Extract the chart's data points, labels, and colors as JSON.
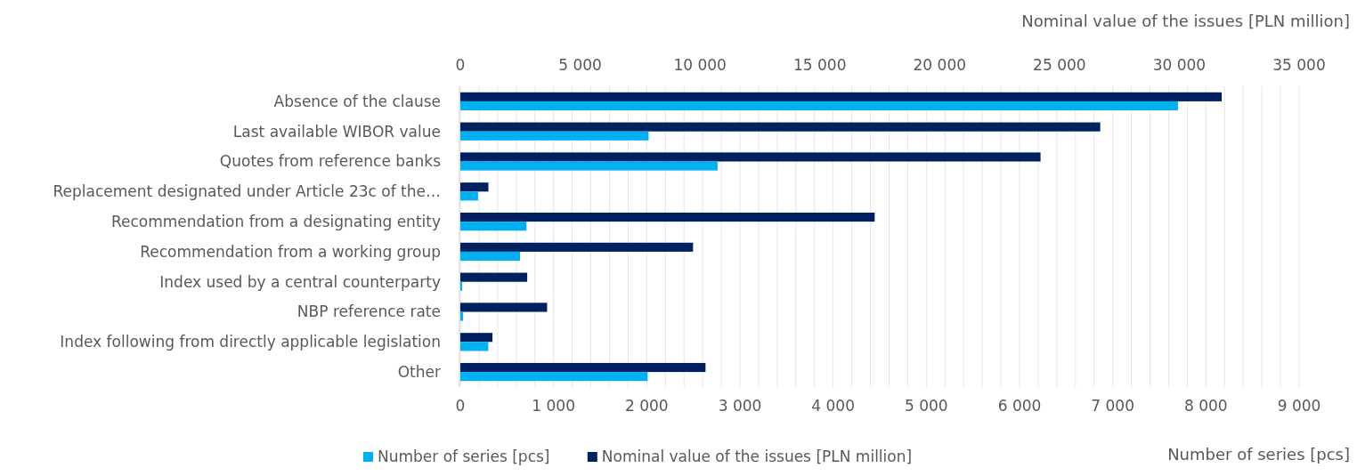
{
  "chart_data": {
    "type": "bar",
    "orientation": "horizontal",
    "categories": [
      "Absence of the clause",
      "Last available WIBOR value",
      "Quotes from reference banks",
      "Replacement designated under Article 23c of the…",
      "Recommendation from a designating entity",
      "Recommendation from a working group",
      "Index used by a central counterparty",
      "NBP reference rate",
      "Index following from directly applicable legislation",
      "Other"
    ],
    "series": [
      {
        "name": "Number of series [pcs]",
        "color": "#00b0f0",
        "values": [
          7700,
          2020,
          2760,
          190,
          710,
          640,
          20,
          30,
          300,
          2010
        ]
      },
      {
        "name": "Nominal value of the issues [PLN million]",
        "color": "#002060",
        "axis": "x2",
        "values": [
          31770,
          26700,
          24210,
          1170,
          17290,
          9710,
          2790,
          3620,
          1340,
          10230
        ]
      }
    ],
    "xlabel": "Number of series [pcs]",
    "x2label": "Nominal value of the issues [PLN million]",
    "xlim": [
      0,
      9000
    ],
    "xticks": [
      0,
      {
        "value": 200,
        "label": null
      },
      {
        "value": 400,
        "label": null
      },
      {
        "value": 600,
        "label": null
      },
      {
        "value": 800,
        "label": null
      },
      {
        "value": 1000,
        "label": "1 000"
      },
      {
        "value": 1200,
        "label": null
      },
      {
        "value": 1400,
        "label": null
      },
      {
        "value": 1600,
        "label": null
      },
      {
        "value": 1800,
        "label": null
      },
      {
        "value": 2000,
        "label": "2 000"
      },
      {
        "value": 2200,
        "label": null
      },
      {
        "value": 2400,
        "label": null
      },
      {
        "value": 2600,
        "label": null
      },
      {
        "value": 2800,
        "label": null
      },
      {
        "value": 3000,
        "label": "3 000"
      },
      {
        "value": 3200,
        "label": null
      },
      {
        "value": 3400,
        "label": null
      },
      {
        "value": 3600,
        "label": null
      },
      {
        "value": 3800,
        "label": null
      },
      {
        "value": 4000,
        "label": "4 000"
      },
      {
        "value": 4200,
        "label": null
      },
      {
        "value": 4400,
        "label": null
      },
      {
        "value": 4600,
        "label": null
      },
      {
        "value": 4800,
        "label": null
      },
      {
        "value": 5000,
        "label": "5 000"
      },
      {
        "value": 5200,
        "label": null
      },
      {
        "value": 5400,
        "label": null
      },
      {
        "value": 5600,
        "label": null
      },
      {
        "value": 5800,
        "label": null
      },
      {
        "value": 6000,
        "label": "6 000"
      },
      {
        "value": 6200,
        "label": null
      },
      {
        "value": 6400,
        "label": null
      },
      {
        "value": 6600,
        "label": null
      },
      {
        "value": 6800,
        "label": null
      },
      {
        "value": 7000,
        "label": "7 000"
      },
      {
        "value": 7200,
        "label": null
      },
      {
        "value": 7400,
        "label": null
      },
      {
        "value": 7600,
        "label": null
      },
      {
        "value": 7800,
        "label": null
      },
      {
        "value": 8000,
        "label": "8 000"
      },
      {
        "value": 8200,
        "label": null
      },
      {
        "value": 8400,
        "label": null
      },
      {
        "value": 8600,
        "label": null
      },
      {
        "value": 8800,
        "label": null
      },
      {
        "value": 9000,
        "label": "9 000"
      }
    ],
    "x2lim": [
      0,
      35000
    ],
    "x2ticks": [
      0,
      {
        "value": 5000,
        "label": "5 000"
      },
      {
        "value": 10000,
        "label": "10 000"
      },
      {
        "value": 15000,
        "label": "15 000"
      },
      {
        "value": 20000,
        "label": "20 000"
      },
      {
        "value": 25000,
        "label": "25 000"
      },
      {
        "value": 30000,
        "label": "30 000"
      },
      {
        "value": 35000,
        "label": "35 000"
      }
    ],
    "grid": "x",
    "legend": "bottom"
  }
}
